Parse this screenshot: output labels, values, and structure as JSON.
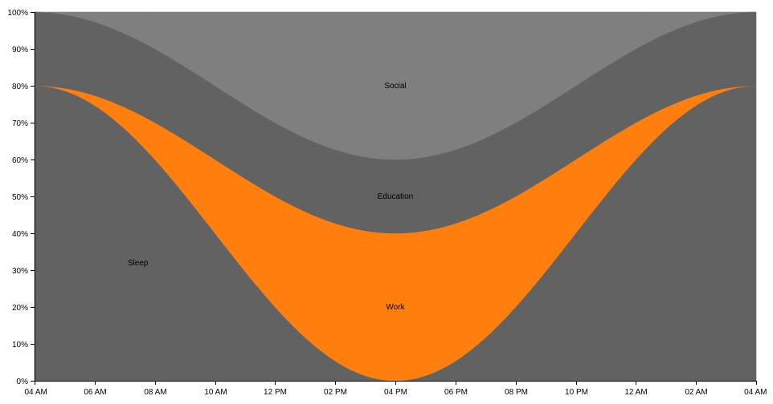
{
  "chart_data": {
    "type": "area",
    "stacked": true,
    "normalized": true,
    "x_ticks": [
      "04 AM",
      "06 AM",
      "08 AM",
      "10 AM",
      "12 PM",
      "02 PM",
      "04 PM",
      "06 PM",
      "08 PM",
      "10 PM",
      "12 AM",
      "02 AM",
      "04 AM"
    ],
    "y_ticks": [
      "0%",
      "10%",
      "20%",
      "30%",
      "40%",
      "50%",
      "60%",
      "70%",
      "80%",
      "90%",
      "100%"
    ],
    "ylim": [
      0,
      100
    ],
    "x": [
      "04 AM",
      "04 PM",
      "04 AM"
    ],
    "series": [
      {
        "name": "Sleep",
        "values": [
          80,
          0,
          80
        ],
        "color": "#626262"
      },
      {
        "name": "Work",
        "values": [
          0,
          40,
          0
        ],
        "color": "#ff7f0e"
      },
      {
        "name": "Education",
        "values": [
          20,
          20,
          20
        ],
        "color": "#626262"
      },
      {
        "name": "Social",
        "values": [
          0,
          40,
          0
        ],
        "color": "#7f7f7f"
      }
    ],
    "grid": false,
    "legend": "none"
  }
}
